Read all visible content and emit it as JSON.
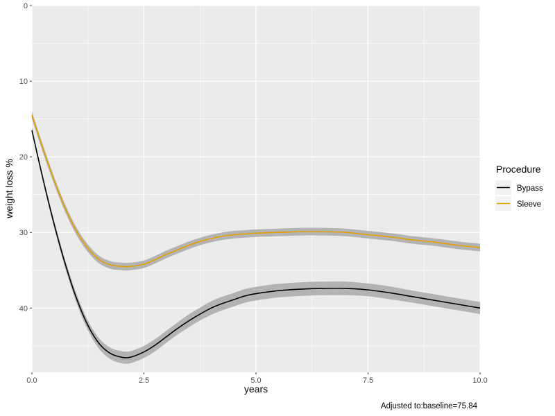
{
  "chart_data": {
    "type": "line",
    "xlabel": "years",
    "ylabel": "weight loss %",
    "xlim": [
      0,
      10
    ],
    "ylim": [
      0,
      48.5
    ],
    "y_reversed": true,
    "x_ticks": [
      0,
      2.5,
      5,
      7.5,
      10
    ],
    "x_tick_labels": [
      "0.0",
      "2.5",
      "5.0",
      "7.5",
      "10.0"
    ],
    "y_ticks": [
      0,
      10,
      20,
      30,
      40
    ],
    "y_tick_labels": [
      "0",
      "10",
      "20",
      "30",
      "40"
    ],
    "grid": true,
    "legend": {
      "title": "Procedure",
      "position": "right"
    },
    "caption": "Adjusted to:baseline=75.84",
    "ribbon_color": "#b3b3b3",
    "panel_color": "#ebebeb",
    "series": [
      {
        "name": "Bypass",
        "color": "#000000",
        "x": [
          0,
          0.25,
          0.5,
          0.75,
          1.0,
          1.25,
          1.5,
          1.75,
          2.0,
          2.2,
          2.5,
          2.75,
          3.0,
          3.25,
          3.5,
          3.75,
          4.0,
          4.25,
          4.5,
          4.75,
          5.0,
          5.5,
          6.0,
          6.5,
          7.0,
          7.5,
          8.0,
          8.5,
          9.0,
          9.5,
          10.0
        ],
        "y": [
          16.5,
          23.0,
          29.0,
          34.3,
          38.8,
          42.3,
          44.7,
          46.0,
          46.5,
          46.5,
          45.8,
          44.9,
          43.8,
          42.7,
          41.7,
          40.8,
          40.0,
          39.4,
          38.9,
          38.4,
          38.1,
          37.7,
          37.5,
          37.4,
          37.4,
          37.6,
          38.0,
          38.5,
          39.0,
          39.5,
          40.0
        ],
        "band": [
          0.3,
          0.4,
          0.5,
          0.55,
          0.6,
          0.65,
          0.7,
          0.75,
          0.8,
          0.8,
          0.8,
          0.8,
          0.8,
          0.8,
          0.85,
          0.85,
          0.9,
          0.9,
          0.9,
          0.9,
          0.9,
          0.9,
          0.9,
          0.9,
          0.9,
          0.85,
          0.85,
          0.8,
          0.8,
          0.8,
          0.8
        ]
      },
      {
        "name": "Sleeve",
        "color": "#e69f00",
        "x": [
          0,
          0.25,
          0.5,
          0.75,
          1.0,
          1.25,
          1.5,
          1.75,
          2.0,
          2.2,
          2.5,
          2.75,
          3.0,
          3.25,
          3.5,
          3.75,
          4.0,
          4.25,
          4.5,
          4.75,
          5.0,
          5.5,
          6.0,
          6.5,
          7.0,
          7.5,
          8.0,
          8.5,
          9.0,
          9.5,
          10.0
        ],
        "y": [
          14.5,
          19.0,
          23.2,
          26.9,
          29.9,
          32.1,
          33.6,
          34.3,
          34.5,
          34.5,
          34.2,
          33.6,
          32.9,
          32.3,
          31.7,
          31.2,
          30.8,
          30.5,
          30.3,
          30.2,
          30.1,
          30.0,
          29.9,
          29.9,
          30.0,
          30.3,
          30.6,
          31.0,
          31.3,
          31.7,
          32.0
        ]
      }
    ]
  }
}
